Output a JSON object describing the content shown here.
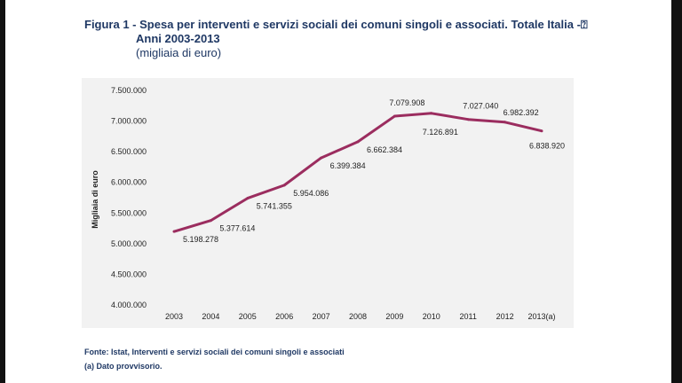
{
  "title": {
    "line1": "Figura 1 - Spesa per interventi e servizi sociali dei comuni singoli e associati. Totale Italia -⍰",
    "line2": "Anni 2003-2013",
    "line3": "(migliaia di euro)"
  },
  "chart_data": {
    "type": "line",
    "title": "Spesa per interventi e servizi sociali dei comuni singoli e associati. Totale Italia - Anni 2003-2013",
    "xlabel": "",
    "ylabel": "Migliaia di euro",
    "ylim": [
      4000000,
      7500000
    ],
    "yticks": [
      4000000,
      4500000,
      5000000,
      5500000,
      6000000,
      6500000,
      7000000,
      7500000
    ],
    "ytick_labels": [
      "4.000.000",
      "4.500.000",
      "5.000.000",
      "5.500.000",
      "6.000.000",
      "6.500.000",
      "7.000.000",
      "7.500.000"
    ],
    "categories": [
      "2003",
      "2004",
      "2005",
      "2006",
      "2007",
      "2008",
      "2009",
      "2010",
      "2011",
      "2012",
      "2013(a)"
    ],
    "values": [
      5198278,
      5377614,
      5741355,
      5954086,
      6399384,
      6662384,
      7079908,
      7126891,
      7027040,
      6982392,
      6838920
    ],
    "data_labels": [
      "5.198.278",
      "5.377.614",
      "5.741.355",
      "5.954.086",
      "6.399.384",
      "6.662.384",
      "7.079.908",
      "7.126.891",
      "7.027.040",
      "6.982.392",
      "6.838.920"
    ],
    "line_color": "#9b2d5f",
    "grid": false,
    "legend": "none"
  },
  "footer": {
    "source": "Fonte: Istat, Interventi e servizi sociali dei comuni singoli e associati",
    "note": "(a) Dato provvisorio."
  }
}
